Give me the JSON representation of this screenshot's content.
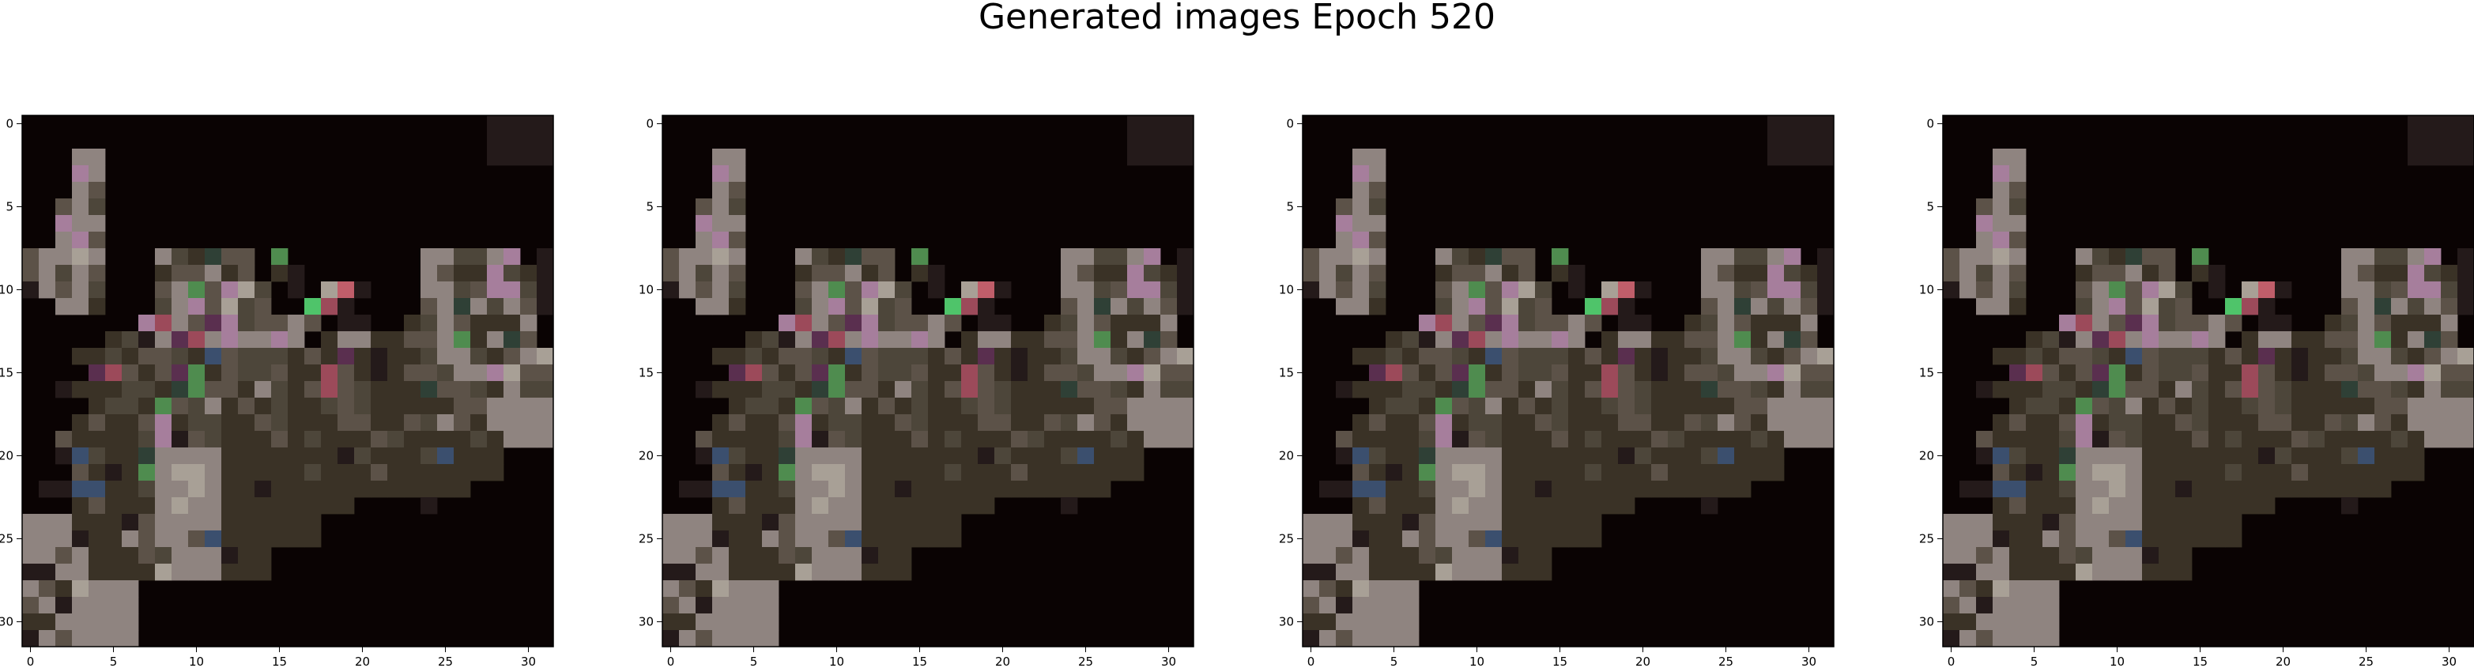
{
  "figure": {
    "title": "Generated images Epoch 520"
  },
  "chart_data": {
    "type": "heatmap",
    "title": "Generated images Epoch 520",
    "panel_count": 4,
    "grid": {
      "rows": 32,
      "cols": 32
    },
    "x_ticks": [
      0,
      5,
      10,
      15,
      20,
      25,
      30
    ],
    "y_ticks": [
      0,
      5,
      10,
      15,
      20,
      25,
      30
    ],
    "xlim": [
      -0.5,
      31.5
    ],
    "ylim": [
      31.5,
      -0.5
    ],
    "background_color": "#0a0303",
    "palette": {
      "M": "#8f8480",
      "L": "#a8a096",
      "P": "#a67e9c",
      "G": "#4f8c4f",
      "B": "#3b4f6e",
      "R": "#9c4a5a",
      "D": "#3a3226",
      "E": "#4d463a",
      "K": "#241a1a",
      "N": "#5c5248",
      "V": "#5a2f4f",
      "C": "#2f4036",
      "g": "#4fc46a",
      "r": "#c05e6a"
    },
    "pixel_rows": [
      "............................KKKK",
      "............................KKKK",
      "...MM.......................KKKK",
      "...PM...........................",
      "...MN...........................",
      "..NME...........................",
      "..PMM...........................",
      "..MPN...........................",
      "NMMLM...MEDCNN.G........MMEEMP.K",
      "NMEMN...DNNMDN.DK.......MNDDPEDK",
      "KMNME...NMGNPLE.K.LrK...MMENPPEK",
      "..MMD...EMPNLEN..gRK....NMCMEMNK",
      ".......PRMNVPENNMN.KK..DEMNDDDM.",
      ".....DEKMVRMPMMPM.DMMDDNNMGDMCN.",
      "...DDEDNNEDBNEEEDNDVDKDDEMMEDNML",
      "....VRNDNVGDNEENDDRNDKDNNEMMPLNN",
      "..KDDDEEDCGNNDMEDNRNEDDDCNNEDMEE",
      "....DEEDGNEMDNDEDDENEDDDDDNNMMMM",
      "...DNDDNPDEEDDNEDDDNNDDNEMNDMMMM",
      "..NDDDDEPKNEDDDNDEDDDNEDDDDEDMMM",
      "..KBEDDCMMMMDDDDDDDKEDDDEBDDD...",
      "...NDKDGMLLMDDDDDEDDDNDDDDDDD...",
      ".KKBBDDEMMLMDDKDDDDDDDDDDDD.....",
      "...DNDDDMLMMDDDDDDDD....K.......",
      "MMMDDDKNMMMMDDDDDD..............",
      "MMMKDDMNMMNBDDDDDD..............",
      "MMNMDDDNEMMMKDD.................",
      "KKMMDDDDLMMMDDD.................",
      "MNDLMMM.........................",
      "NMKMMMM.........................",
      "DDMMMMM.........................",
      "KMNMMMM........................."
    ]
  }
}
